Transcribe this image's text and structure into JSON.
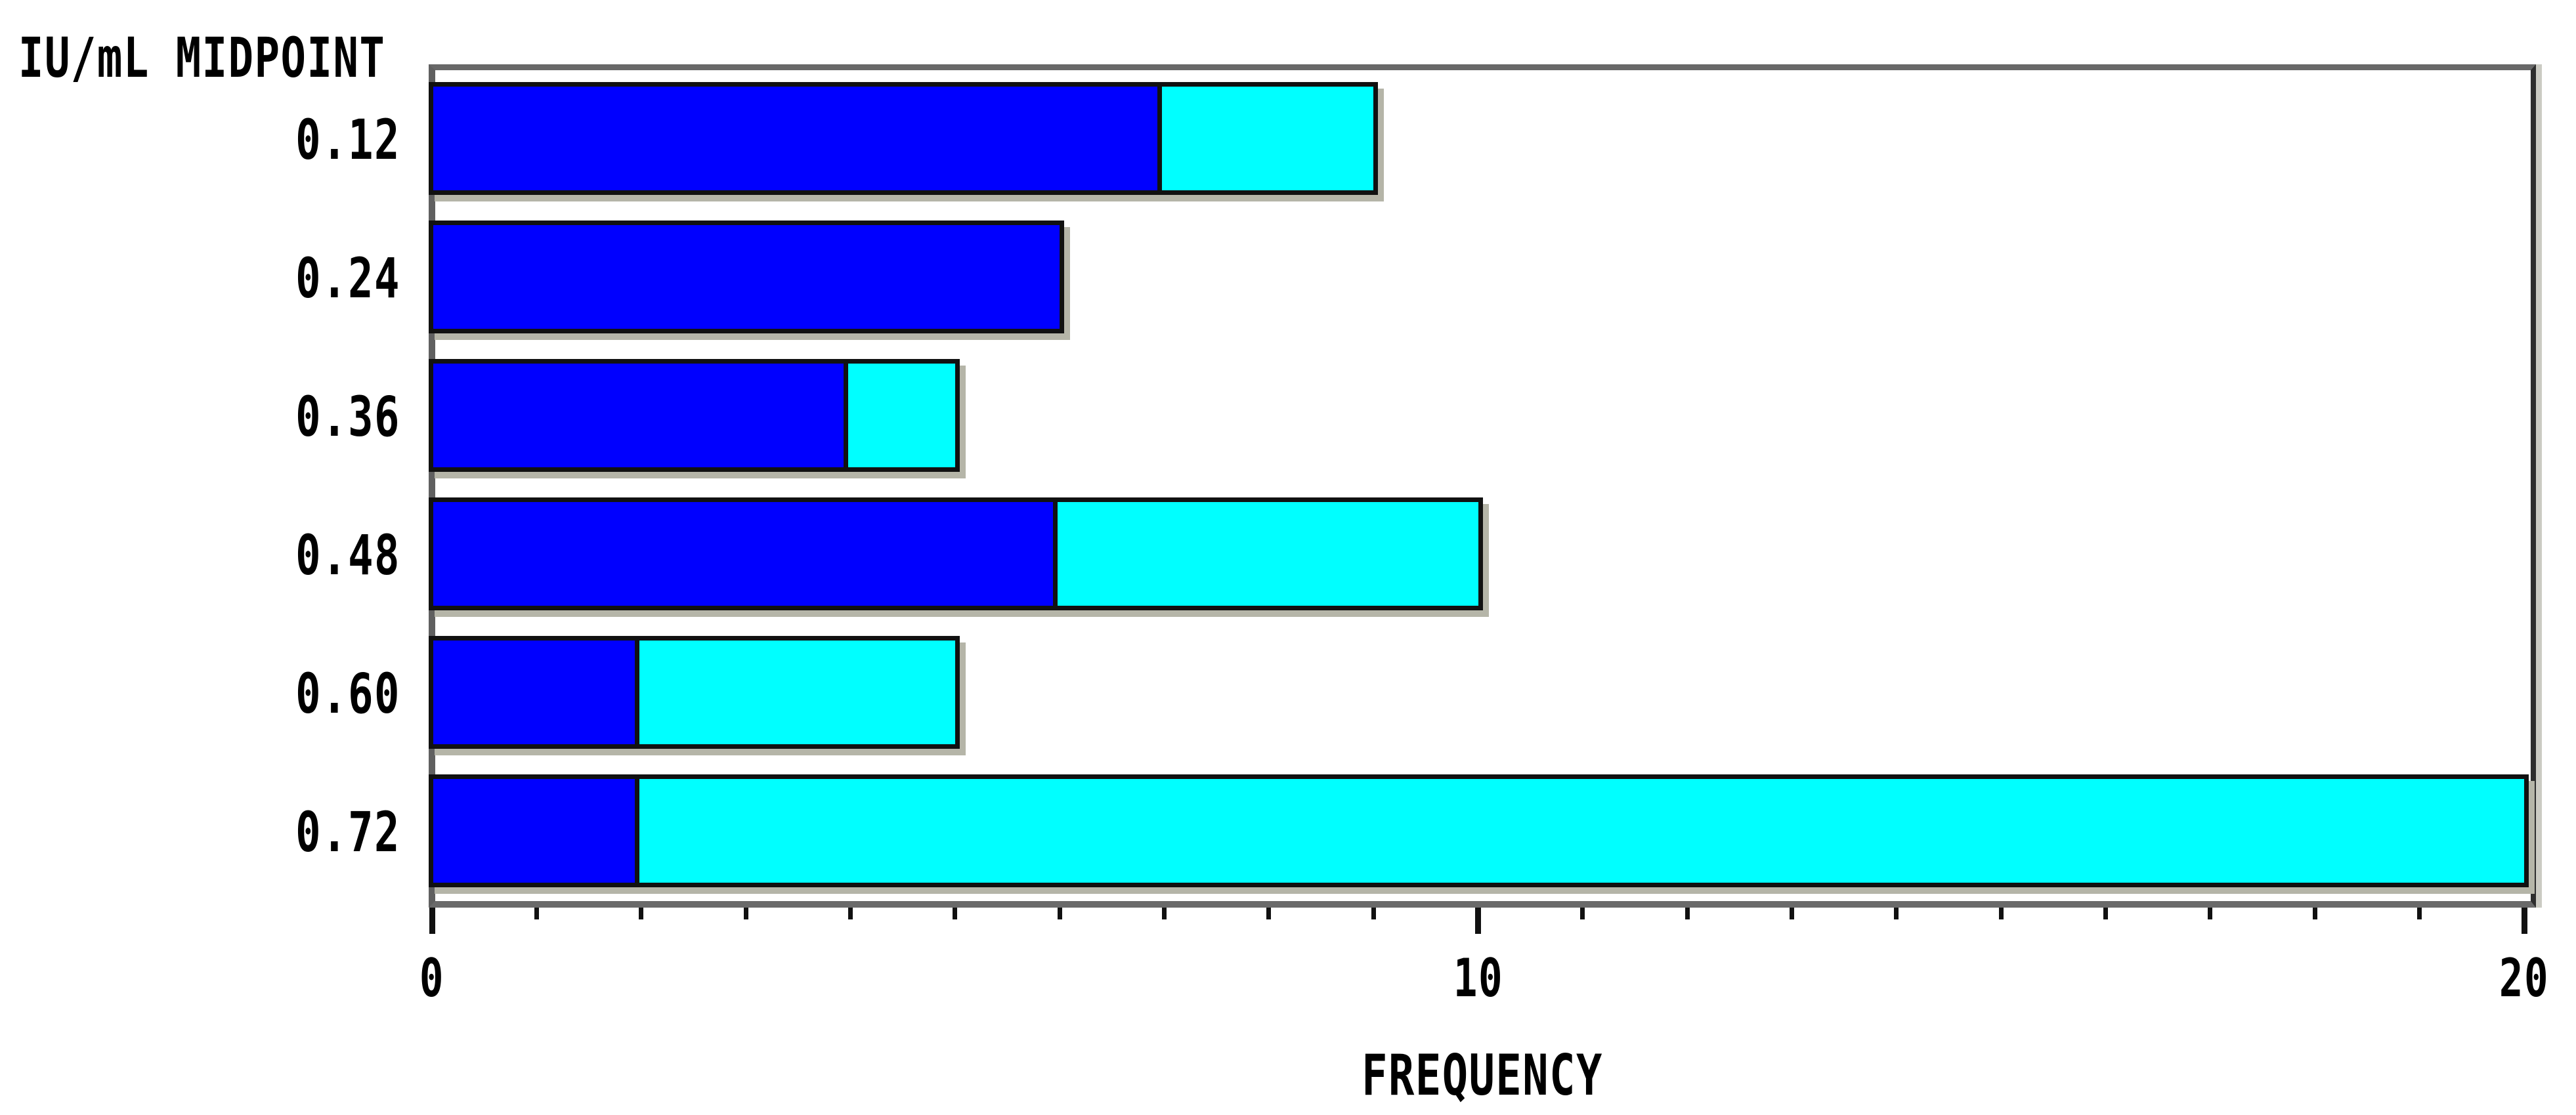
{
  "chart_data": {
    "type": "bar",
    "orientation": "horizontal",
    "stacked": true,
    "title": "",
    "ylabel": "IU/mL MIDPOINT",
    "xlabel": "FREQUENCY",
    "categories": [
      "0.12",
      "0.24",
      "0.36",
      "0.48",
      "0.60",
      "0.72"
    ],
    "series": [
      {
        "name": "blue-segment",
        "color": "#0000ff",
        "values": [
          7,
          6,
          4,
          6,
          2,
          2
        ]
      },
      {
        "name": "cyan-segment",
        "color": "#00ffff",
        "values": [
          2,
          0,
          1,
          4,
          3,
          18
        ]
      }
    ],
    "totals": [
      9,
      6,
      5,
      10,
      5,
      20
    ],
    "xlim": [
      0,
      20
    ],
    "x_major_ticks": [
      0,
      10,
      20
    ],
    "x_tick_labels": [
      "0",
      "10",
      "20"
    ],
    "x_minor_tick_step": 1,
    "grid": false,
    "legend": "none"
  },
  "colors": {
    "background": "#ffffff",
    "bar_blue": "#0000ff",
    "bar_cyan": "#00ffff",
    "bar_border": "#111111",
    "frame_top": "#686868",
    "frame_left": "#606060",
    "frame_right": "#2e2e2e",
    "axis_bottom": "#6a6a6a",
    "tick": "#111111",
    "text": "#000000",
    "shadow": "#b5b5a8"
  }
}
